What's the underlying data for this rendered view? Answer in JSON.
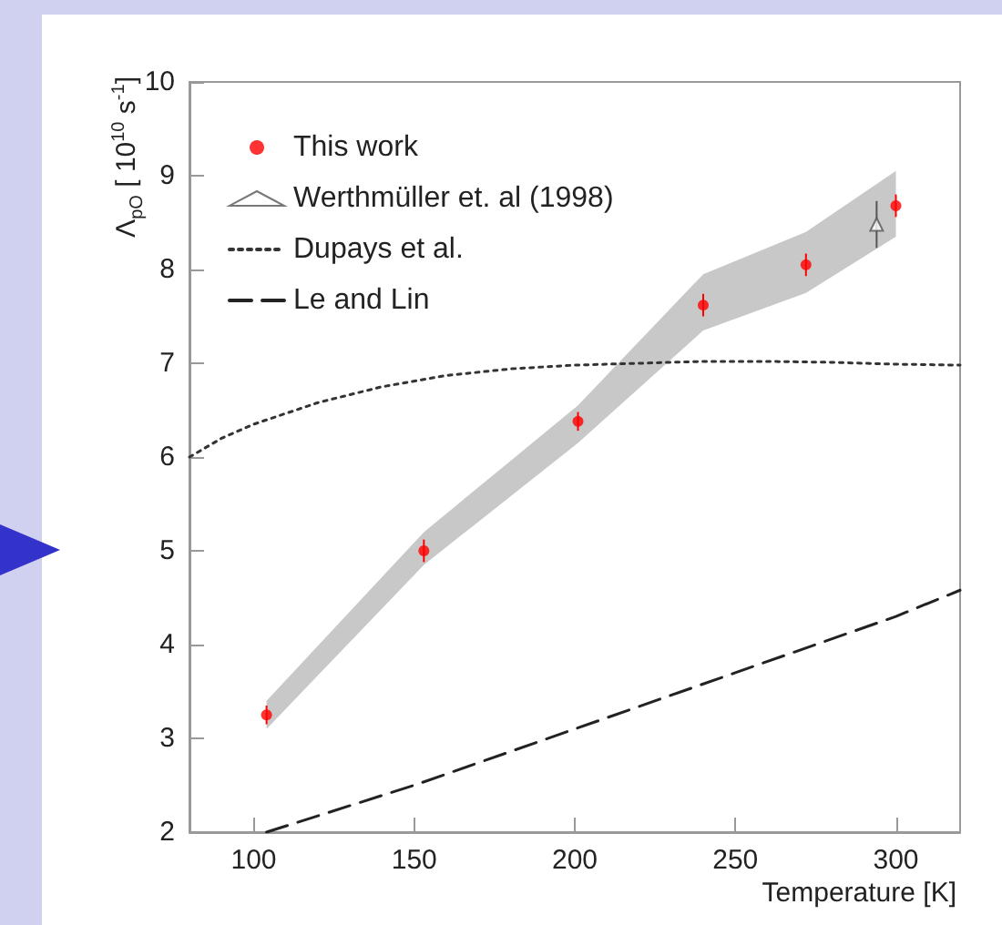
{
  "chart_data": {
    "type": "scatter",
    "xlabel": "Temperature [K]",
    "ylabel": "Λ$_{pO}$ [ 10$^{10}$ s$^{-1}$]",
    "xlim": [
      80,
      320
    ],
    "xticks": [
      100,
      150,
      200,
      250,
      300
    ],
    "ylim": [
      2,
      10
    ],
    "yticks": [
      2,
      3,
      4,
      5,
      6,
      7,
      8,
      9,
      10
    ],
    "grid": false,
    "legend": "top left",
    "series": [
      {
        "name": "This work",
        "marker": "circle",
        "color": "#ff0000",
        "x": [
          104,
          153,
          201,
          240,
          272,
          300
        ],
        "values": [
          3.25,
          5.0,
          6.38,
          7.62,
          8.05,
          8.68
        ],
        "errors": [
          0.1,
          0.12,
          0.1,
          0.12,
          0.12,
          0.12
        ],
        "lower": [
          3.1,
          4.85,
          6.15,
          7.35,
          7.75,
          8.35
        ],
        "upper": [
          3.4,
          5.2,
          6.55,
          7.95,
          8.4,
          9.05
        ]
      },
      {
        "name": "Werthmüller et. al (1998)",
        "marker": "triangle",
        "color": "#555555",
        "x": [
          294
        ],
        "values": [
          8.48
        ],
        "errors": [
          0.25
        ]
      },
      {
        "name": "Dupays et al.",
        "type": "line",
        "line_style": "dotted",
        "marker": "none",
        "color": "#333333",
        "x": [
          80,
          90,
          100,
          120,
          140,
          160,
          180,
          200,
          220,
          240,
          260,
          280,
          300,
          320
        ],
        "values": [
          6.0,
          6.2,
          6.35,
          6.58,
          6.75,
          6.87,
          6.94,
          6.98,
          7.0,
          7.02,
          7.02,
          7.01,
          6.99,
          6.98
        ]
      },
      {
        "name": "Le and Lin",
        "type": "line",
        "line_style": "dashed",
        "marker": "none",
        "color": "#222222",
        "x": [
          104,
          150,
          200,
          250,
          300,
          320
        ],
        "values": [
          2.0,
          2.5,
          3.1,
          3.7,
          4.3,
          4.58
        ]
      }
    ]
  }
}
